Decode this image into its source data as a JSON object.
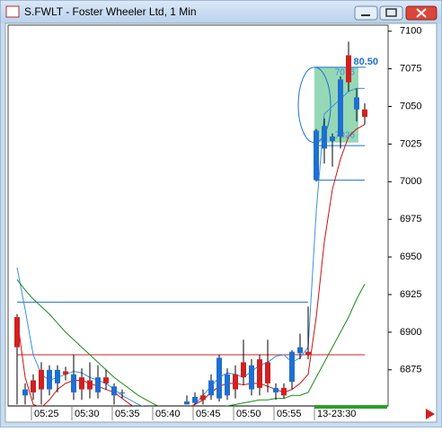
{
  "chart_data": {
    "type": "candlestick",
    "title": "S.FWLT - Foster Wheeler Ltd, 1 Min",
    "categories": [
      null,
      null,
      "05:25",
      null,
      null,
      null,
      null,
      "05:30",
      null,
      null,
      null,
      null,
      "05:35",
      null,
      null,
      null,
      null,
      "05:40",
      null,
      null,
      null,
      null,
      "05:45",
      null,
      null,
      null,
      null,
      "05:50",
      null,
      null,
      null,
      null,
      "05:55",
      null,
      null,
      null,
      null,
      "13-23:30",
      null,
      null,
      null,
      null,
      null,
      null
    ],
    "open": [
      6910,
      6858,
      6868,
      6875,
      6862,
      6866,
      6874,
      6860,
      6870,
      6868,
      6860,
      6870,
      6858,
      6860,
      null,
      null,
      null,
      null,
      null,
      null,
      null,
      6852,
      6853,
      6858,
      6858,
      6856,
      6858,
      6872,
      6880,
      6862,
      6882,
      6880,
      6860,
      6863,
      6867,
      6886,
      6887,
      7001,
      7022,
      7027,
      7030,
      7084,
      7048,
      7048
    ],
    "high": [
      6912,
      6866,
      6872,
      6880,
      6878,
      6878,
      6877,
      6885,
      6876,
      6880,
      6878,
      6875,
      6866,
      6862,
      null,
      null,
      null,
      null,
      null,
      null,
      null,
      6858,
      6860,
      6862,
      6872,
      6885,
      6876,
      6878,
      6895,
      6882,
      6885,
      6895,
      6866,
      6866,
      6888,
      6899,
      6917,
      7035,
      7042,
      7032,
      7070,
      7093,
      7062,
      7052
    ],
    "low": [
      6852,
      6852,
      6855,
      6852,
      6858,
      6860,
      6868,
      6855,
      6855,
      6856,
      6856,
      6862,
      6852,
      6856,
      null,
      null,
      null,
      null,
      null,
      null,
      null,
      6852,
      6852,
      6852,
      6855,
      6854,
      6855,
      6856,
      6865,
      6858,
      6858,
      6860,
      6855,
      6856,
      6862,
      6882,
      6882,
      7000,
      7012,
      7010,
      7022,
      7060,
      7040,
      7038
    ],
    "close": [
      6890,
      6862,
      6860,
      6862,
      6875,
      6875,
      6872,
      6872,
      6862,
      6862,
      6870,
      6866,
      6864,
      6860,
      null,
      null,
      null,
      null,
      null,
      null,
      null,
      6854,
      6857,
      6855,
      6868,
      6883,
      6872,
      6862,
      6870,
      6878,
      6863,
      6866,
      6863,
      6858,
      6887,
      6890,
      6885,
      7034,
      7037,
      7030,
      7068,
      7066,
      7056,
      7043
    ],
    "up_color": "#1f6fd1",
    "down_color": "#d12020",
    "series": [
      {
        "color": "#3d8fe0",
        "values": [
          6943,
          6915,
          6885,
          6872,
          6868,
          6870,
          6872,
          6874,
          6873,
          6870,
          6868,
          6866,
          6862,
          6858,
          6855,
          6852,
          6850,
          6848,
          6846,
          6845,
          6846,
          6848,
          6852,
          6858,
          6864,
          6870,
          6873,
          6872,
          6870,
          6874,
          6878,
          6880,
          6884,
          6885,
          6880,
          6883,
          6890,
          6980,
          7045,
          7050,
          7055,
          7060,
          7062,
          7062
        ]
      },
      {
        "color": "#cc1010",
        "values": [
          6910,
          6870,
          6852,
          6850,
          6855,
          6862,
          6866,
          6868,
          6868,
          6866,
          6864,
          6862,
          6860,
          6856,
          6852,
          6849,
          6847,
          6846,
          6846,
          6847,
          6848,
          6850,
          6852,
          6855,
          6860,
          6864,
          6866,
          6866,
          6865,
          6866,
          6866,
          6864,
          6862,
          6860,
          6862,
          6866,
          6872,
          6910,
          6960,
          6995,
          7015,
          7030,
          7035,
          7038
        ]
      },
      {
        "color": "#1a8a1a",
        "values": [
          6935,
          6928,
          6922,
          6917,
          6912,
          6906,
          6900,
          6895,
          6890,
          6885,
          6880,
          6875,
          6870,
          6866,
          6862,
          6858,
          6855,
          6852,
          6850,
          6849,
          6848,
          6848,
          6848,
          6848,
          6849,
          6850,
          6851,
          6852,
          6853,
          6854,
          6855,
          6855,
          6856,
          6856,
          6858,
          6858,
          6860,
          6870,
          6880,
          6890,
          6900,
          6910,
          6922,
          6932
        ]
      }
    ],
    "levels": [
      {
        "value": 6920,
        "color": "#1f6fd1",
        "start": 0,
        "end": 36
      },
      {
        "value": 6885,
        "color": "#d12020",
        "start": 0,
        "end": 43
      },
      {
        "value": 7001,
        "color": "#1f6fd1",
        "start": 37,
        "end": 43
      },
      {
        "value": 7024,
        "color": "#1f6fd1",
        "start": 37,
        "end": 43
      }
    ],
    "zone": {
      "low": 7026,
      "high": 7076,
      "start": 37,
      "end": 42,
      "color": "#3cb878"
    },
    "annotation": "80.50",
    "ylim": [
      6851,
      7104
    ],
    "yticks": [
      7100,
      7075,
      7050,
      7025,
      7000,
      6975,
      6950,
      6925,
      6900,
      6875
    ]
  }
}
